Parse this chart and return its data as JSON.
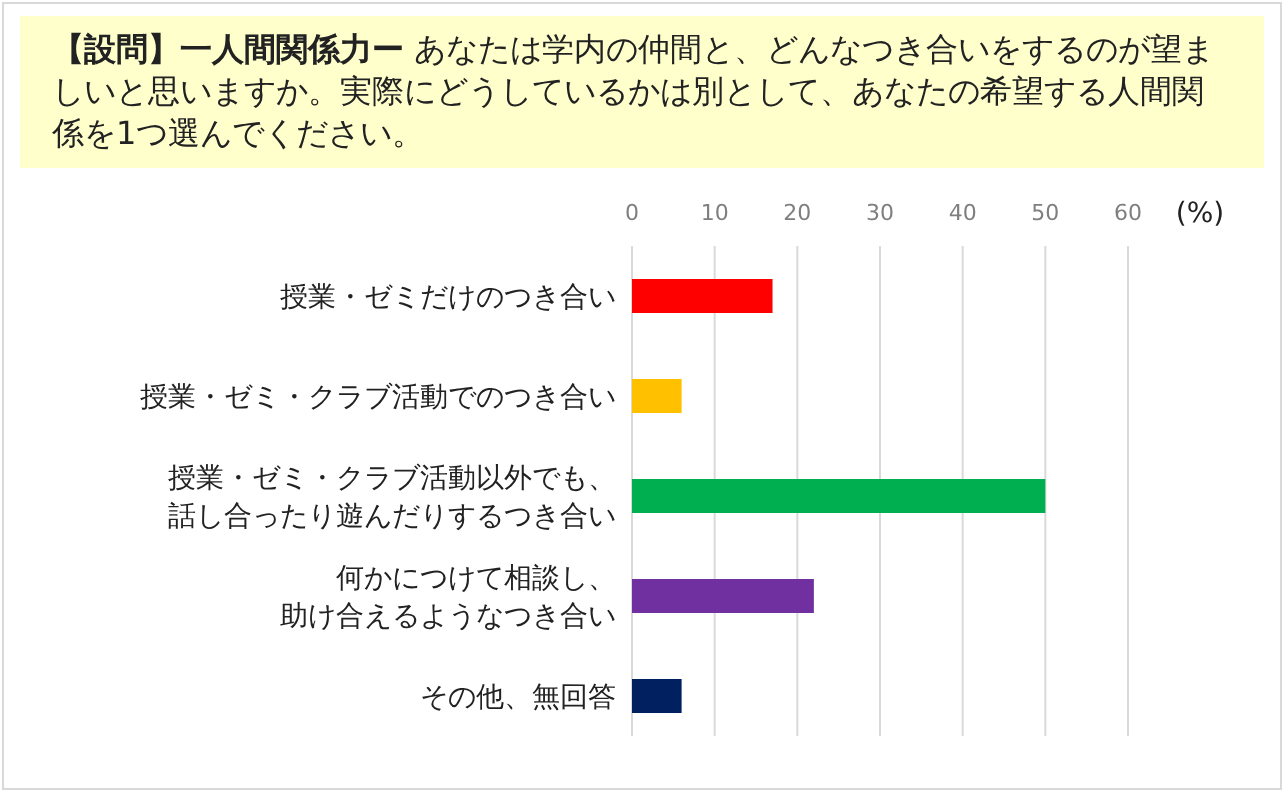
{
  "chart_data": {
    "type": "bar",
    "orientation": "horizontal",
    "title": "【設問】一人間関係力ー",
    "subtitle": "あなたは学内の仲間と、どんなつき合いをするのが望ましいと思いますか。実際にどうしているかは別として、あなたの希望する人間関係を1つ選んでください。",
    "xlabel": "(%)",
    "categories": [
      "授業・ゼミだけのつき合い",
      "授業・ゼミ・クラブ活動でのつき合い",
      "授業・ゼミ・クラブ活動以外でも、話し合ったり遊んだりするつき合い",
      "何かにつけて相談し、助け合えるようなつき合い",
      "その他、無回答"
    ],
    "values": [
      17,
      6,
      50,
      22,
      6
    ],
    "colors": [
      "#ff0000",
      "#ffc000",
      "#00b050",
      "#7030a0",
      "#002060"
    ],
    "xlim": [
      0,
      60
    ],
    "xticks": [
      0,
      10,
      20,
      30,
      40,
      50,
      60
    ],
    "grid": "x"
  }
}
